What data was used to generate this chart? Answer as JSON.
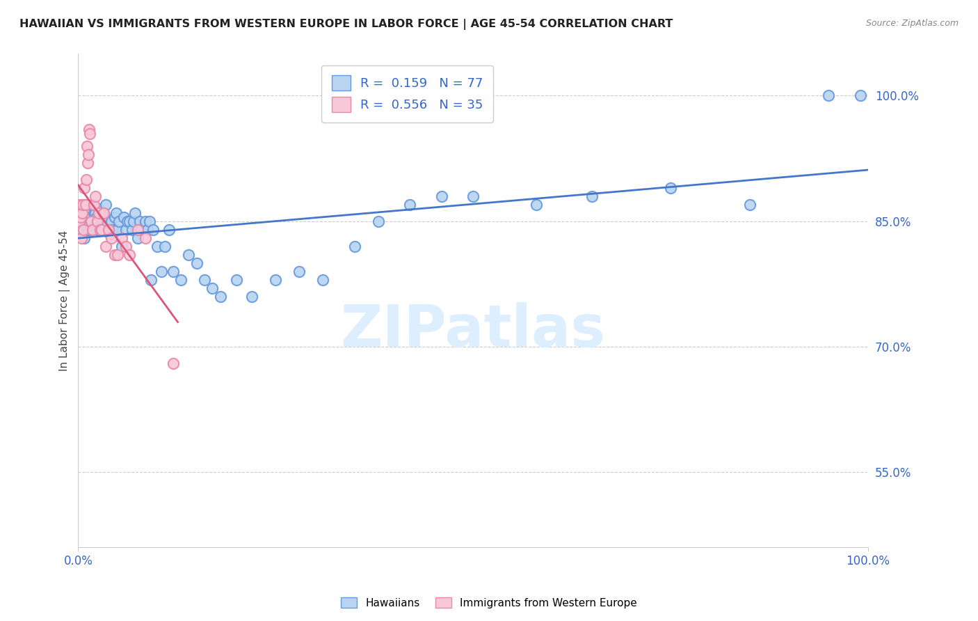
{
  "title": "HAWAIIAN VS IMMIGRANTS FROM WESTERN EUROPE IN LABOR FORCE | AGE 45-54 CORRELATION CHART",
  "source": "Source: ZipAtlas.com",
  "ylabel": "In Labor Force | Age 45-54",
  "xlim": [
    0.0,
    1.0
  ],
  "ylim": [
    0.46,
    1.05
  ],
  "y_tick_labels_right": [
    "55.0%",
    "70.0%",
    "85.0%",
    "100.0%"
  ],
  "y_tick_positions_right": [
    0.55,
    0.7,
    0.85,
    1.0
  ],
  "grid_color": "#cccccc",
  "background_color": "#ffffff",
  "hawaiians_color": "#b8d4f0",
  "hawaiians_edge_color": "#6699dd",
  "immigrants_color": "#f8c8d8",
  "immigrants_edge_color": "#e888a8",
  "R_hawaiians": 0.159,
  "N_hawaiians": 77,
  "R_immigrants": 0.556,
  "N_immigrants": 35,
  "blue_line_color": "#4477cc",
  "pink_line_color": "#dd5577",
  "hawaiians_x": [
    0.002,
    0.003,
    0.005,
    0.008,
    0.01,
    0.011,
    0.012,
    0.013,
    0.014,
    0.015,
    0.016,
    0.018,
    0.02,
    0.021,
    0.022,
    0.023,
    0.024,
    0.025,
    0.026,
    0.027,
    0.028,
    0.03,
    0.032,
    0.033,
    0.035,
    0.036,
    0.038,
    0.04,
    0.042,
    0.044,
    0.046,
    0.048,
    0.05,
    0.052,
    0.055,
    0.058,
    0.06,
    0.062,
    0.065,
    0.068,
    0.07,
    0.072,
    0.075,
    0.078,
    0.08,
    0.085,
    0.088,
    0.09,
    0.092,
    0.095,
    0.1,
    0.105,
    0.11,
    0.115,
    0.12,
    0.13,
    0.14,
    0.15,
    0.16,
    0.17,
    0.18,
    0.2,
    0.22,
    0.25,
    0.28,
    0.31,
    0.35,
    0.38,
    0.42,
    0.46,
    0.5,
    0.58,
    0.65,
    0.75,
    0.85,
    0.95,
    0.99
  ],
  "hawaiians_y": [
    0.85,
    0.84,
    0.86,
    0.83,
    0.87,
    0.855,
    0.84,
    0.85,
    0.86,
    0.84,
    0.85,
    0.87,
    0.86,
    0.845,
    0.86,
    0.855,
    0.84,
    0.85,
    0.865,
    0.84,
    0.855,
    0.84,
    0.86,
    0.855,
    0.87,
    0.85,
    0.84,
    0.835,
    0.85,
    0.84,
    0.855,
    0.86,
    0.84,
    0.85,
    0.82,
    0.855,
    0.84,
    0.85,
    0.85,
    0.84,
    0.85,
    0.86,
    0.83,
    0.85,
    0.84,
    0.85,
    0.84,
    0.85,
    0.78,
    0.84,
    0.82,
    0.79,
    0.82,
    0.84,
    0.79,
    0.78,
    0.81,
    0.8,
    0.78,
    0.77,
    0.76,
    0.78,
    0.76,
    0.78,
    0.79,
    0.78,
    0.82,
    0.85,
    0.87,
    0.88,
    0.88,
    0.87,
    0.88,
    0.89,
    0.87,
    1.0,
    1.0
  ],
  "immigrants_x": [
    0.001,
    0.002,
    0.003,
    0.004,
    0.005,
    0.006,
    0.007,
    0.008,
    0.009,
    0.01,
    0.011,
    0.012,
    0.013,
    0.014,
    0.015,
    0.016,
    0.018,
    0.02,
    0.022,
    0.024,
    0.026,
    0.028,
    0.03,
    0.032,
    0.035,
    0.038,
    0.042,
    0.046,
    0.05,
    0.055,
    0.06,
    0.065,
    0.075,
    0.085,
    0.12
  ],
  "immigrants_y": [
    0.85,
    0.87,
    0.855,
    0.83,
    0.86,
    0.87,
    0.84,
    0.89,
    0.87,
    0.9,
    0.94,
    0.92,
    0.93,
    0.96,
    0.955,
    0.85,
    0.84,
    0.87,
    0.88,
    0.85,
    0.86,
    0.84,
    0.84,
    0.86,
    0.82,
    0.84,
    0.83,
    0.81,
    0.81,
    0.83,
    0.82,
    0.81,
    0.84,
    0.83,
    0.68
  ],
  "watermark_text": "ZIPatlas",
  "watermark_color": "#ddeeff",
  "marker_size": 11,
  "marker_linewidth": 1.5
}
